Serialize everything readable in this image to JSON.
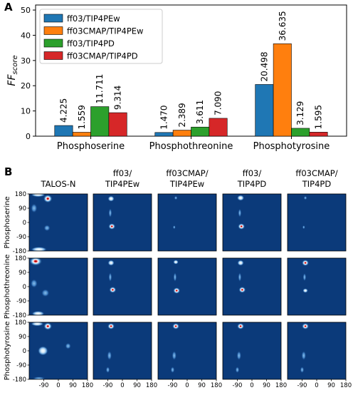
{
  "panel_a_letter": "A",
  "panel_b_letter": "B",
  "chart_data": [
    {
      "type": "bar",
      "ylabel_main": "FF",
      "ylabel_sub": "score",
      "ylim": [
        0,
        52
      ],
      "yticks": [
        0,
        10,
        20,
        30,
        40,
        50
      ],
      "categories": [
        "Phosphoserine",
        "Phosphothreonine",
        "Phosphotyrosine"
      ],
      "legend_position": "top-left",
      "series": [
        {
          "name": "ff03/TIP4PEw",
          "color": "#1f77b4",
          "values": [
            4.225,
            1.47,
            20.498
          ],
          "labels": [
            "4.225",
            "1.470",
            "20.498"
          ]
        },
        {
          "name": "ff03CMAP/TIP4PEw",
          "color": "#ff7f0e",
          "values": [
            1.559,
            2.389,
            36.635
          ],
          "labels": [
            "1.559",
            "2.389",
            "36.635"
          ]
        },
        {
          "name": "ff03/TIP4PD",
          "color": "#2ca02c",
          "values": [
            11.711,
            3.611,
            3.129
          ],
          "labels": [
            "11.711",
            "3.611",
            "3.129"
          ]
        },
        {
          "name": "ff03CMAP/TIP4PD",
          "color": "#d62728",
          "values": [
            9.314,
            7.09,
            1.595
          ],
          "labels": [
            "9.314",
            "7.090",
            "1.595"
          ]
        }
      ]
    },
    {
      "type": "heatmap",
      "columns": [
        {
          "line1": "TALOS-N",
          "line2": ""
        },
        {
          "line1": "ff03/",
          "line2": "TIP4PEw"
        },
        {
          "line1": "ff03CMAP/",
          "line2": "TIP4PEw"
        },
        {
          "line1": "ff03/",
          "line2": "TIP4PD"
        },
        {
          "line1": "ff03CMAP/",
          "line2": "TIP4PD"
        }
      ],
      "rows": [
        "Phosphoserine",
        "Phosphothreonine",
        "Phosphotyrosine"
      ],
      "x_ticks": [
        "-90",
        "0",
        "90",
        "180"
      ],
      "y_ticks": [
        "180",
        "90",
        "0",
        "-90",
        "-180"
      ],
      "x_range": [
        -180,
        180
      ],
      "y_range": [
        -180,
        180
      ],
      "background_color": "#0b3a7a"
    }
  ]
}
